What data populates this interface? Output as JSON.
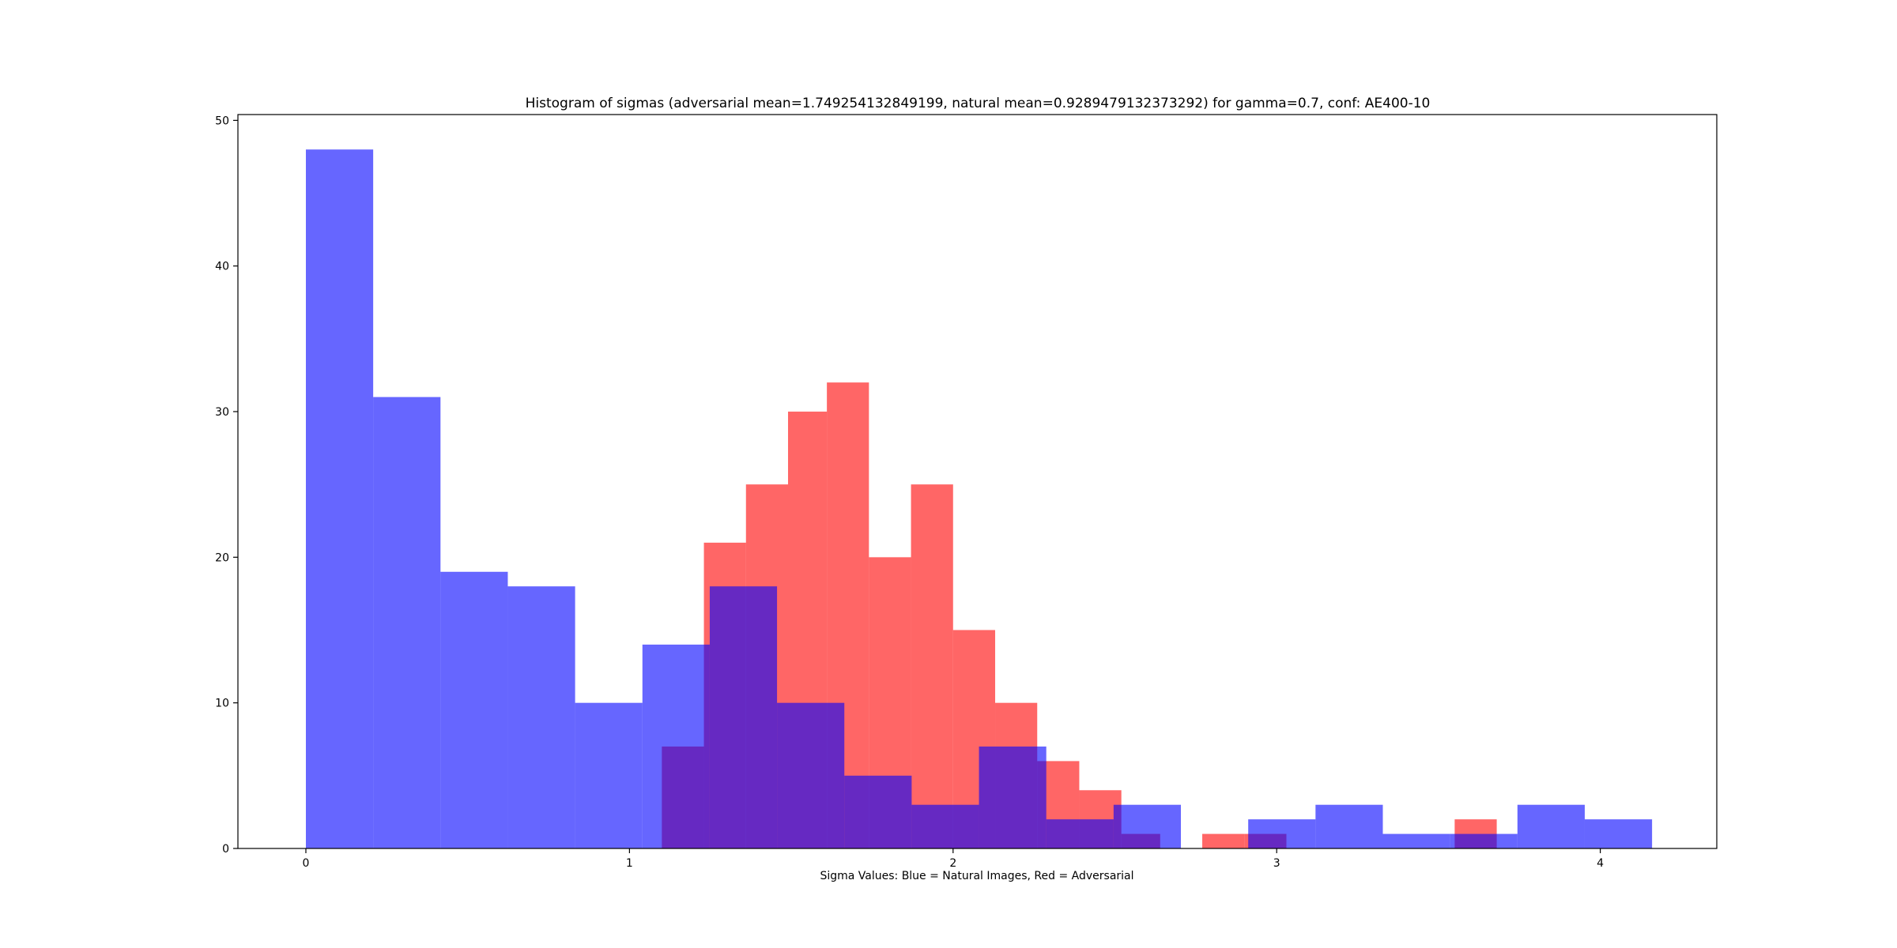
{
  "chart_data": {
    "type": "bar",
    "title": "Histogram of sigmas (adversarial mean=1.749254132849199, natural mean=0.9289479132373292) for gamma=0.7, conf: AE400-10",
    "xlabel": "Sigma Values: Blue = Natural Images, Red = Adversarial",
    "ylabel": "",
    "xlim": [
      -0.21,
      4.36
    ],
    "ylim": [
      0,
      50.4
    ],
    "xticks": [
      "0",
      "1",
      "2",
      "3",
      "4"
    ],
    "yticks": [
      "0",
      "10",
      "20",
      "30",
      "40",
      "50"
    ],
    "grid": false,
    "series": [
      {
        "color": "#ff0000",
        "opacity": 0.6,
        "bin_edges": [
          1.1,
          1.23,
          1.36,
          1.49,
          1.61,
          1.74,
          1.87,
          2.0,
          2.13,
          2.26,
          2.39,
          2.52,
          2.64,
          2.77,
          2.9,
          3.03,
          3.16,
          3.29,
          3.42,
          3.55,
          3.68
        ],
        "counts": [
          7,
          21,
          25,
          30,
          32,
          20,
          25,
          15,
          10,
          6,
          4,
          1,
          0,
          1,
          1,
          0,
          0,
          0,
          0,
          2
        ]
      },
      {
        "color": "#0000ff",
        "opacity": 0.6,
        "bin_edges": [
          0.0,
          0.208,
          0.416,
          0.624,
          0.832,
          1.04,
          1.248,
          1.456,
          1.664,
          1.872,
          2.08,
          2.288,
          2.496,
          2.704,
          2.912,
          3.12,
          3.328,
          3.536,
          3.744,
          3.952,
          4.16
        ],
        "counts": [
          48,
          31,
          19,
          18,
          10,
          14,
          18,
          10,
          5,
          3,
          7,
          2,
          3,
          0,
          2,
          3,
          1,
          1,
          3,
          2
        ]
      }
    ]
  }
}
